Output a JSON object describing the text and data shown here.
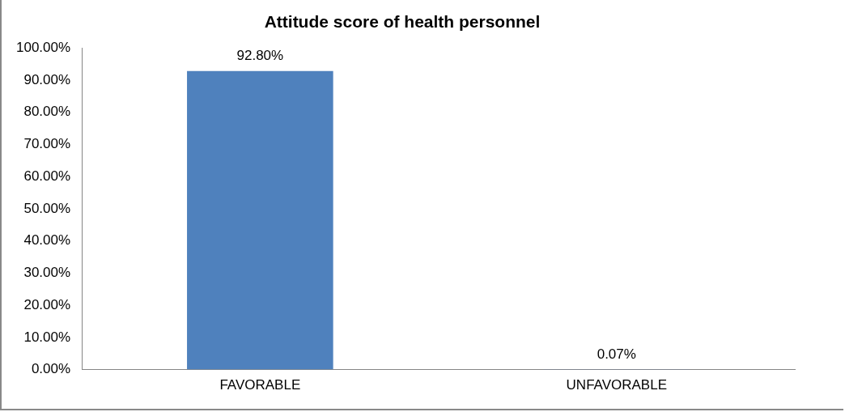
{
  "chart_data": {
    "type": "bar",
    "title": "Attitude score of health personnel",
    "categories": [
      "FAVORABLE",
      "UNFAVORABLE"
    ],
    "values": [
      92.8,
      0.07
    ],
    "color": "#4f81bd",
    "value_labels": [
      "92.80%",
      "0.07%"
    ],
    "ylim": [
      0,
      100
    ],
    "yticks": [
      {
        "value": 0,
        "label": "0.00%"
      },
      {
        "value": 10,
        "label": "10.00%"
      },
      {
        "value": 20,
        "label": "20.00%"
      },
      {
        "value": 30,
        "label": "30.00%"
      },
      {
        "value": 40,
        "label": "40.00%"
      },
      {
        "value": 50,
        "label": "50.00%"
      },
      {
        "value": 60,
        "label": "60.00%"
      },
      {
        "value": 70,
        "label": "70.00%"
      },
      {
        "value": 80,
        "label": "80.00%"
      },
      {
        "value": 90,
        "label": "90.00%"
      },
      {
        "value": 100,
        "label": "100.00%"
      }
    ],
    "grid": false,
    "legend": false
  }
}
